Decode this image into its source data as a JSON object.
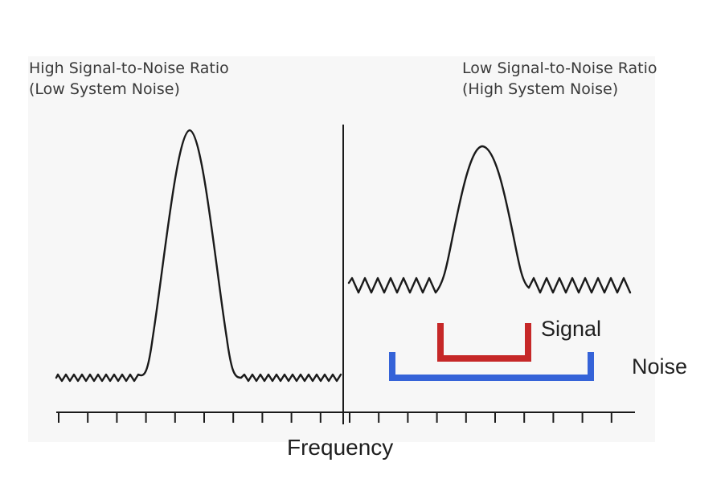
{
  "left_panel": {
    "title": "High Signal-to-Noise Ratio",
    "subtitle": "(Low System Noise)"
  },
  "right_panel": {
    "title": "Low Signal-to-Noise Ratio",
    "subtitle": "(High System Noise)"
  },
  "labels": {
    "signal": "Signal",
    "noise": "Noise",
    "x_axis": "Frequency"
  },
  "colors": {
    "curve": "#1a1a1a",
    "signal_bracket": "#c62828",
    "noise_bracket": "#3563d8"
  }
}
